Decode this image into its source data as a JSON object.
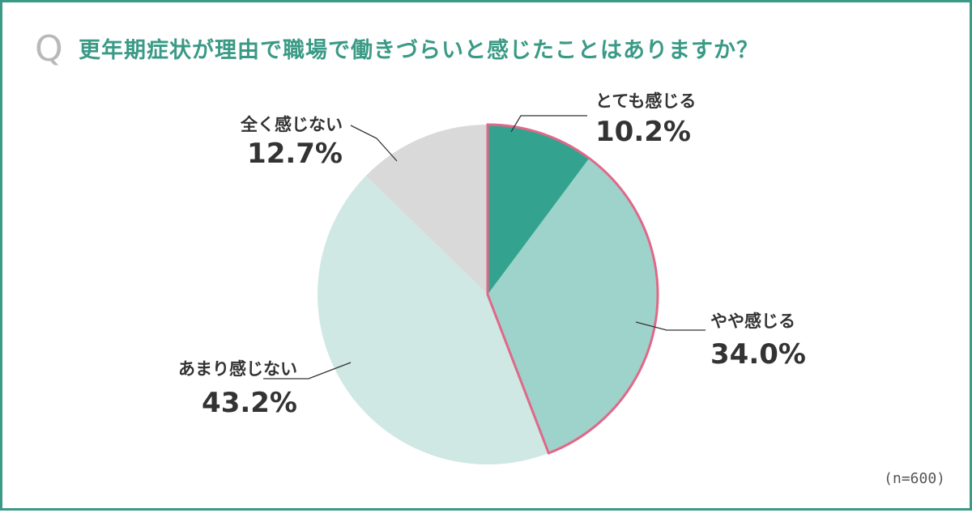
{
  "header": {
    "q_mark": "Q",
    "title": "更年期症状が理由で職場で働きづらいと感じたことはありますか？"
  },
  "sample_size": "(n=600)",
  "colors": {
    "frame": "#3a9a86",
    "title": "#3a9a86",
    "highlight_outline": "#e06888"
  },
  "chart_data": {
    "type": "pie",
    "start": "12 o'clock",
    "direction": "clockwise",
    "slices": [
      {
        "label": "とても感じる",
        "value": 10.2,
        "display": "10.2%",
        "color": "#33a390",
        "highlight": true
      },
      {
        "label": "やや感じる",
        "value": 34.0,
        "display": "34.0%",
        "color": "#9dd3cb",
        "highlight": true
      },
      {
        "label": "あまり感じない",
        "value": 43.2,
        "display": "43.2%",
        "color": "#cfe8e4",
        "highlight": false
      },
      {
        "label": "全く感じない",
        "value": 12.7,
        "display": "12.7%",
        "color": "#d9d9d9",
        "highlight": false
      }
    ]
  }
}
